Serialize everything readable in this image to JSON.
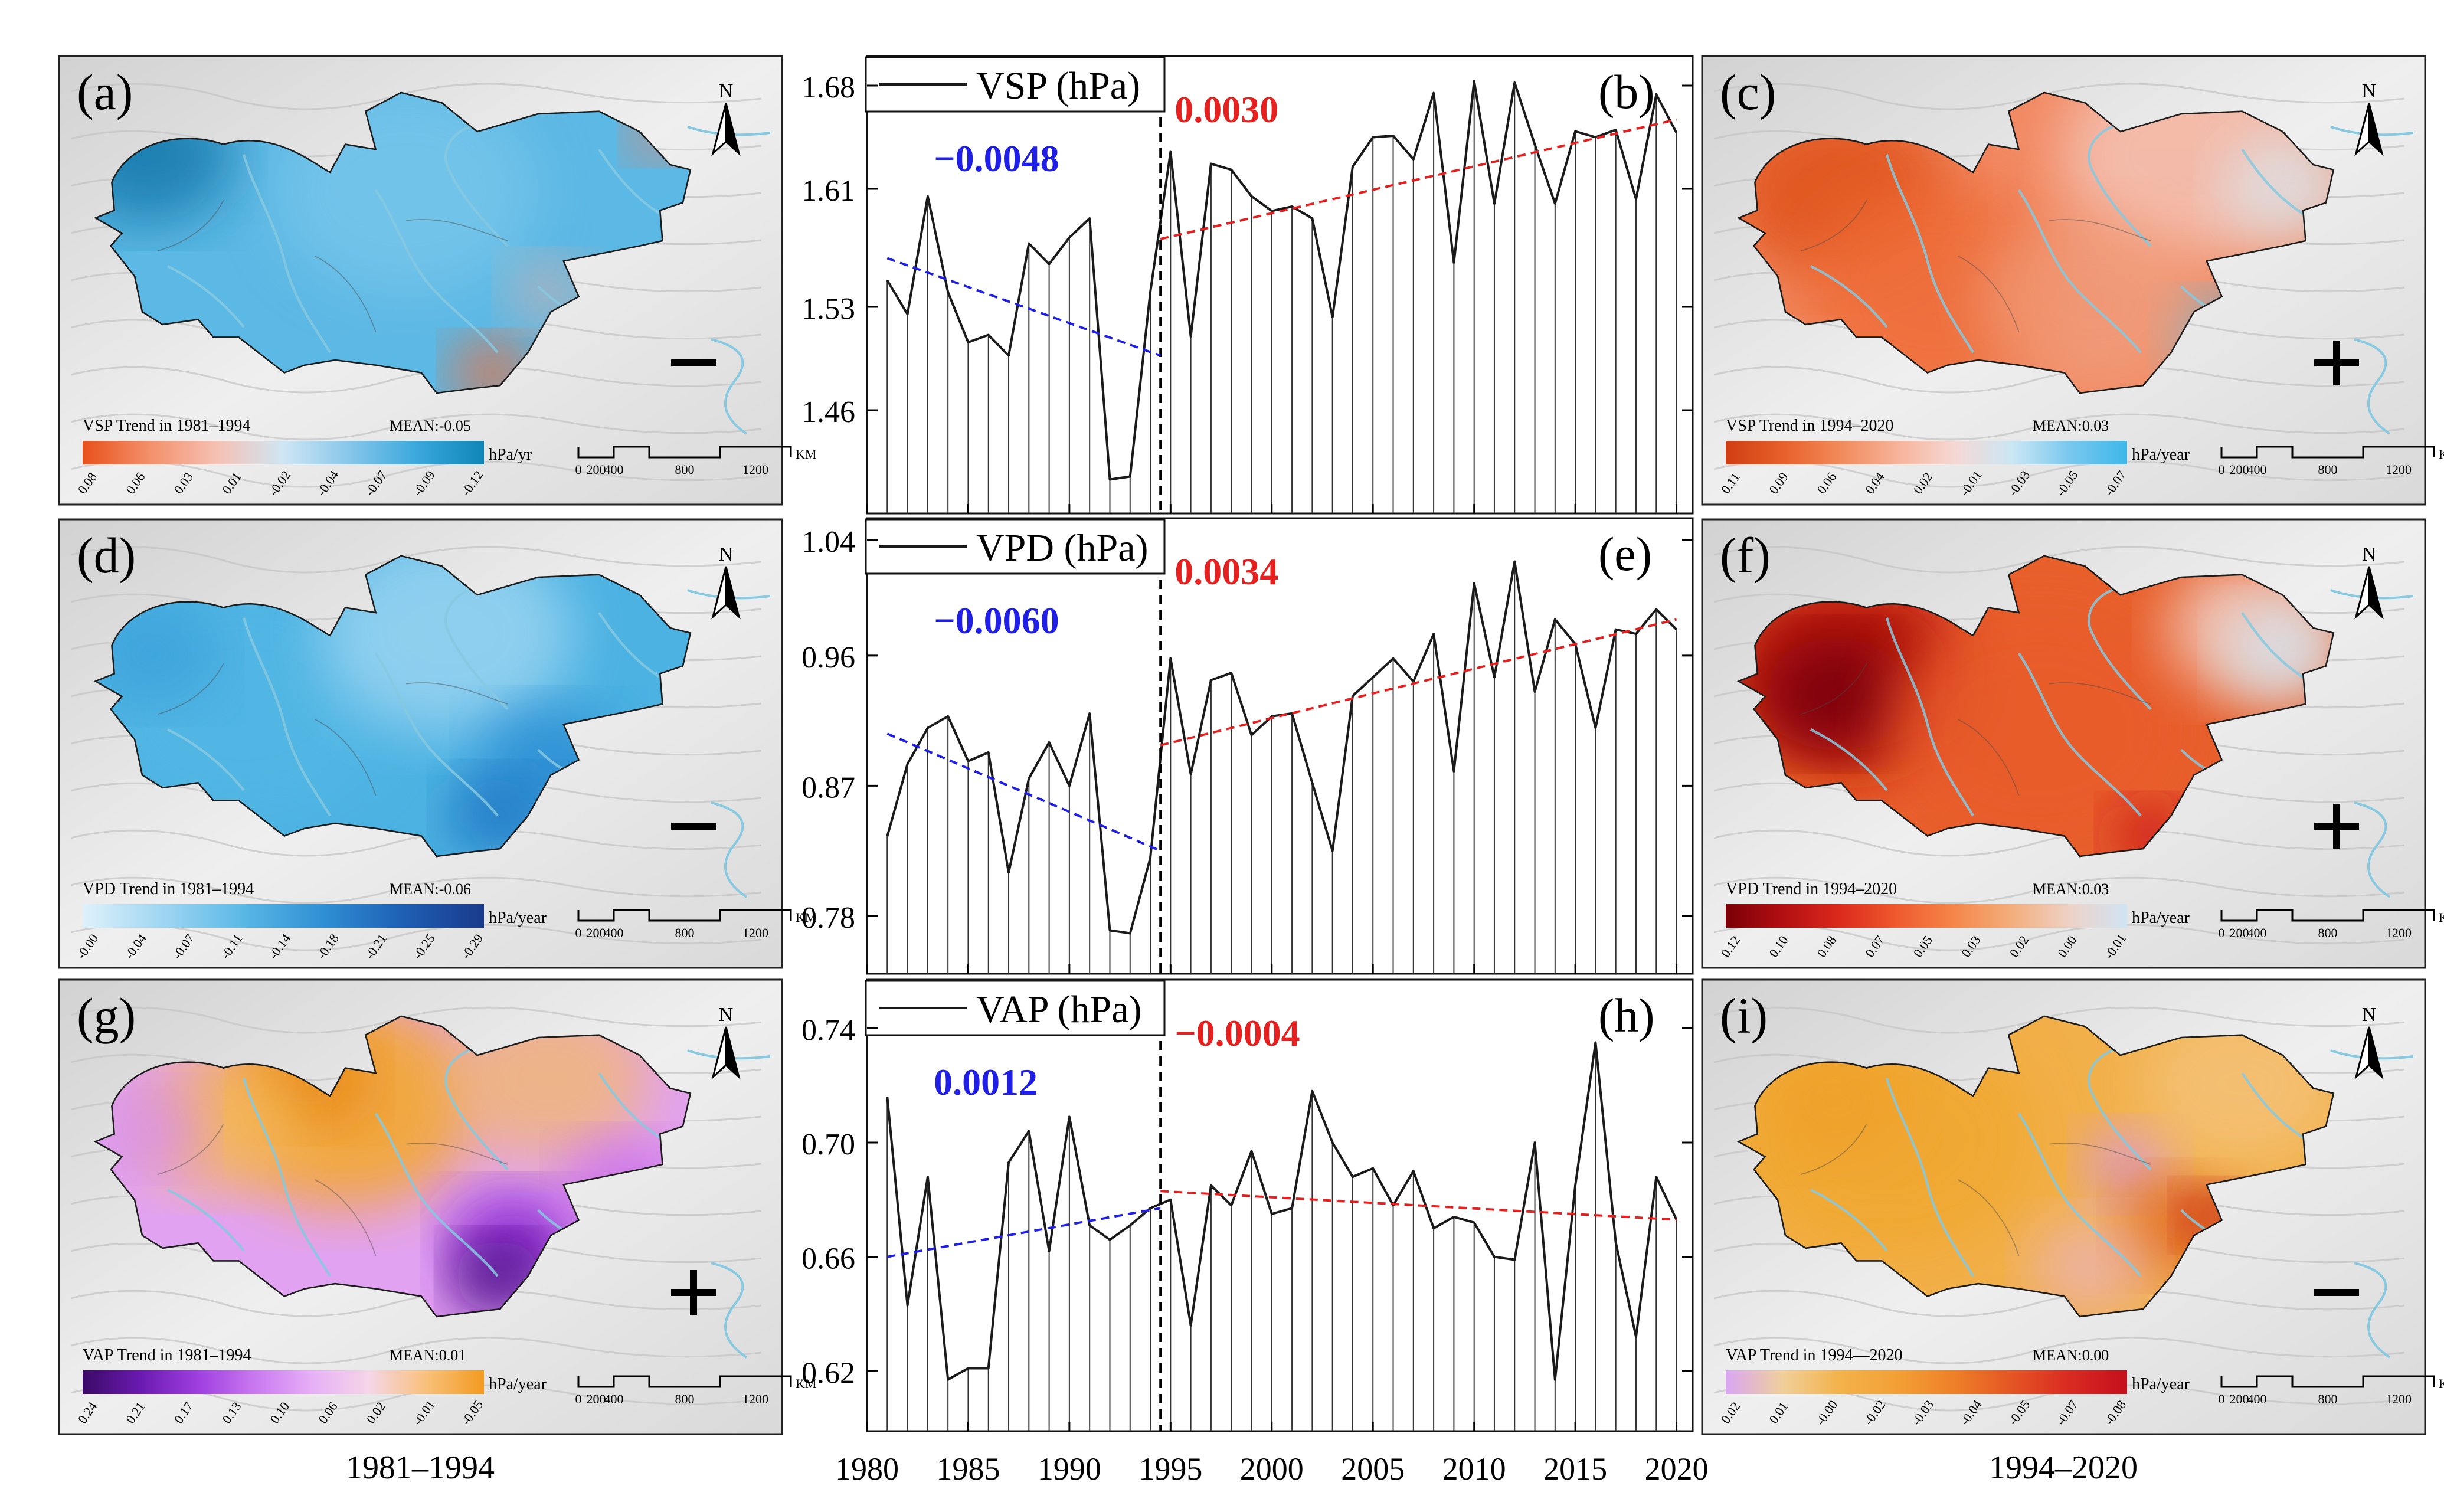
{
  "colors": {
    "trend_before": "#1f1fe6",
    "trend_after": "#e61f1f",
    "line": "#1a1a1a",
    "ramp_vsp_early": [
      "#e8501a",
      "#f4906a",
      "#f6c0b3",
      "#cfe6f4",
      "#86c6ea",
      "#3aa8dc",
      "#0f86b8"
    ],
    "ramp_vsp_late": [
      "#cf3e12",
      "#e8602a",
      "#f28a5a",
      "#f7b39a",
      "#f6d8d4",
      "#cbe6f4",
      "#79c8ee",
      "#3eb7ea"
    ],
    "ramp_vpd_early": [
      "#dff1fb",
      "#9fd6f2",
      "#5ab8e6",
      "#2f8fd4",
      "#1e5fb3",
      "#1a3a8c"
    ],
    "ramp_vpd_late": [
      "#7a0006",
      "#b30f12",
      "#dc2a1d",
      "#ef5a2e",
      "#f5874a",
      "#f4ae7e",
      "#eed2c6",
      "#cfe4f4"
    ],
    "ramp_vap_early": [
      "#3b0a66",
      "#6a1ab0",
      "#9e3ee0",
      "#c978f0",
      "#e6b0f7",
      "#f6d6e8",
      "#f8c07a",
      "#f39a20"
    ],
    "ramp_vap_late": [
      "#d9a6f4",
      "#f0cf9a",
      "#f3b24a",
      "#f2a035",
      "#ee7f28",
      "#e45523",
      "#d92a22",
      "#c5101c"
    ],
    "map_blue": "#5cb8e4",
    "map_blue_dark": "#1f7fb0",
    "map_orange_red": "#ee6a3a",
    "map_red_dark": "#b8180f",
    "map_orange": "#f2a838",
    "map_violet": "#d58ef0",
    "river": "#86c9e0"
  },
  "columns": {
    "left_label": "1981–1994",
    "right_label": "1994–2020"
  },
  "panels": {
    "a": {
      "letter": "(a)",
      "title": "VSP Trend in 1981–1994",
      "mean": "MEAN:-0.05",
      "unit": "hPa/yr",
      "sign": "−",
      "ticks": [
        "0.08",
        "0.06",
        "0.03",
        "0.01",
        "-0.02",
        "-0.04",
        "-0.07",
        "-0.09",
        "-0.12"
      ]
    },
    "c": {
      "letter": "(c)",
      "title": "VSP Trend in 1994–2020",
      "mean": "MEAN:0.03",
      "unit": "hPa/year",
      "sign": "+",
      "ticks": [
        "0.11",
        "0.09",
        "0.06",
        "0.04",
        "0.02",
        "-0.01",
        "-0.03",
        "-0.05",
        "-0.07"
      ]
    },
    "d": {
      "letter": "(d)",
      "title": "VPD Trend in 1981–1994",
      "mean": "MEAN:-0.06",
      "unit": "hPa/year",
      "sign": "−",
      "ticks": [
        "-0.00",
        "-0.04",
        "-0.07",
        "-0.11",
        "-0.14",
        "-0.18",
        "-0.21",
        "-0.25",
        "-0.29"
      ]
    },
    "f": {
      "letter": "(f)",
      "title": "VPD Trend in 1994–2020",
      "mean": "MEAN:0.03",
      "unit": "hPa/year",
      "sign": "+",
      "ticks": [
        "0.12",
        "0.10",
        "0.08",
        "0.07",
        "0.05",
        "0.03",
        "0.02",
        "0.00",
        "-0.01"
      ]
    },
    "g": {
      "letter": "(g)",
      "title": "VAP Trend in 1981–1994",
      "mean": "MEAN:0.01",
      "unit": "hPa/year",
      "sign": "+",
      "ticks": [
        "0.24",
        "0.21",
        "0.17",
        "0.13",
        "0.10",
        "0.06",
        "0.02",
        "-0.01",
        "-0.05"
      ]
    },
    "i": {
      "letter": "(i)",
      "title": "VAP Trend in 1994—2020",
      "mean": "MEAN:0.00",
      "unit": "hPa/year",
      "sign": "−",
      "ticks": [
        "0.02",
        "0.01",
        "-0.00",
        "-0.02",
        "-0.03",
        "-0.04",
        "-0.05",
        "-0.07",
        "-0.08"
      ]
    }
  },
  "map_common": {
    "north": "N",
    "scale_ticks": [
      "0",
      "200",
      "400",
      "800",
      "1200"
    ],
    "scale_unit": "KM"
  },
  "chart_data": [
    {
      "type": "line",
      "panel": "(b)",
      "legend": "VSP (hPa)",
      "x": [
        1981,
        1982,
        1983,
        1984,
        1985,
        1986,
        1987,
        1988,
        1989,
        1990,
        1991,
        1992,
        1993,
        1994,
        1995,
        1996,
        1997,
        1998,
        1999,
        2000,
        2001,
        2002,
        2003,
        2004,
        2005,
        2006,
        2007,
        2008,
        2009,
        2010,
        2011,
        2012,
        2013,
        2014,
        2015,
        2016,
        2017,
        2018,
        2019,
        2020
      ],
      "y": [
        1.548,
        1.525,
        1.605,
        1.54,
        1.506,
        1.511,
        1.497,
        1.573,
        1.559,
        1.577,
        1.59,
        1.413,
        1.415,
        1.54,
        1.635,
        1.51,
        1.627,
        1.623,
        1.605,
        1.595,
        1.598,
        1.59,
        1.523,
        1.625,
        1.645,
        1.646,
        1.63,
        1.675,
        1.56,
        1.683,
        1.6,
        1.682,
        1.64,
        1.6,
        1.649,
        1.645,
        1.65,
        1.603,
        1.674,
        1.648
      ],
      "ylim": [
        1.39,
        1.7
      ],
      "yticks": [
        "1.46",
        "1.53",
        "1.61",
        "1.68"
      ],
      "breakpoint": 1994.5,
      "trend_before": {
        "label": "−0.0048",
        "x": [
          1981,
          1994.5
        ],
        "y": [
          1.563,
          1.497
        ]
      },
      "trend_after": {
        "label": "0.0030",
        "x": [
          1994.5,
          2020
        ],
        "y": [
          1.576,
          1.657
        ]
      }
    },
    {
      "type": "line",
      "panel": "(e)",
      "legend": "VPD (hPa)",
      "x": [
        1981,
        1982,
        1983,
        1984,
        1985,
        1986,
        1987,
        1988,
        1989,
        1990,
        1991,
        1992,
        1993,
        1994,
        1995,
        1996,
        1997,
        1998,
        1999,
        2000,
        2001,
        2002,
        2003,
        2004,
        2005,
        2006,
        2007,
        2008,
        2009,
        2010,
        2011,
        2012,
        2013,
        2014,
        2015,
        2016,
        2017,
        2018,
        2019,
        2020
      ],
      "y": [
        0.835,
        0.885,
        0.91,
        0.918,
        0.887,
        0.893,
        0.81,
        0.875,
        0.9,
        0.87,
        0.92,
        0.77,
        0.768,
        0.82,
        0.958,
        0.878,
        0.943,
        0.948,
        0.905,
        0.918,
        0.92,
        0.872,
        0.825,
        0.932,
        0.945,
        0.958,
        0.942,
        0.975,
        0.88,
        1.01,
        0.945,
        1.025,
        0.935,
        0.985,
        0.968,
        0.91,
        0.978,
        0.975,
        0.992,
        0.978
      ],
      "ylim": [
        0.74,
        1.055
      ],
      "yticks": [
        "0.78",
        "0.87",
        "0.96",
        "1.04"
      ],
      "breakpoint": 1994.5,
      "trend_before": {
        "label": "−0.0060",
        "x": [
          1981,
          1994.5
        ],
        "y": [
          0.906,
          0.825
        ]
      },
      "trend_after": {
        "label": "0.0034",
        "x": [
          1994.5,
          2020
        ],
        "y": [
          0.898,
          0.985
        ]
      }
    },
    {
      "type": "line",
      "panel": "(h)",
      "legend": "VAP (hPa)",
      "x": [
        1981,
        1982,
        1983,
        1984,
        1985,
        1986,
        1987,
        1988,
        1989,
        1990,
        1991,
        1992,
        1993,
        1994,
        1995,
        1996,
        1997,
        1998,
        1999,
        2000,
        2001,
        2002,
        2003,
        2004,
        2005,
        2006,
        2007,
        2008,
        2009,
        2010,
        2011,
        2012,
        2013,
        2014,
        2015,
        2016,
        2017,
        2018,
        2019,
        2020
      ],
      "y": [
        0.716,
        0.643,
        0.688,
        0.617,
        0.621,
        0.621,
        0.693,
        0.704,
        0.662,
        0.709,
        0.671,
        0.666,
        0.671,
        0.677,
        0.68,
        0.636,
        0.685,
        0.678,
        0.697,
        0.675,
        0.677,
        0.718,
        0.7,
        0.688,
        0.691,
        0.678,
        0.69,
        0.67,
        0.674,
        0.672,
        0.66,
        0.659,
        0.7,
        0.617,
        0.685,
        0.735,
        0.665,
        0.632,
        0.688,
        0.673
      ],
      "ylim": [
        0.599,
        0.757
      ],
      "yticks": [
        "0.62",
        "0.66",
        "0.70",
        "0.74"
      ],
      "breakpoint": 1994.5,
      "trend_before": {
        "label": "0.0012",
        "x": [
          1981,
          1994.5
        ],
        "y": [
          0.66,
          0.677
        ]
      },
      "trend_after": {
        "label": "−0.0004",
        "x": [
          1994.5,
          2020
        ],
        "y": [
          0.683,
          0.673
        ]
      }
    }
  ],
  "shared_x": {
    "ticks": [
      "1980",
      "1985",
      "1990",
      "1995",
      "2000",
      "2005",
      "2010",
      "2015",
      "2020"
    ],
    "xlim": [
      1980,
      2020.8
    ]
  }
}
